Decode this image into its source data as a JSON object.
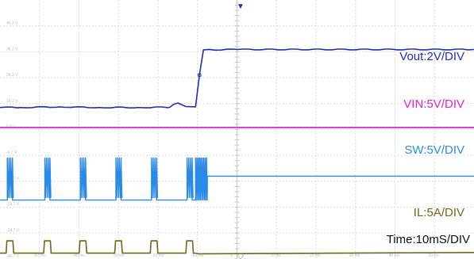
{
  "chart_data": {
    "type": "line",
    "title": "",
    "xlabel": "",
    "ylabel": "",
    "grid": true,
    "time_div": "Time:10mS/DIV",
    "x_ticks": [
      "-50 ms",
      "-40 ms",
      "-30 ms",
      "-20 ms",
      "-10 ms",
      "0",
      "10 ms",
      "20 ms",
      "30 ms",
      "40 ms",
      "50 ms"
    ],
    "xlim": [
      -60,
      60
    ],
    "y_ticks": [
      {
        "label": "46.3 V",
        "v": 8
      },
      {
        "label": "36.3 V",
        "v": 6
      },
      {
        "label": "26.3 V",
        "v": 4
      },
      {
        "label": "16.3 V",
        "v": 2
      },
      {
        "label": "6.3 V",
        "v": 0
      },
      {
        "label": "-6.7 V",
        "v": -2
      },
      {
        "label": "-16.7 V",
        "v": -4
      },
      {
        "label": "-26.7 V",
        "v": -6
      },
      {
        "label": "-36.7 V",
        "v": -8
      },
      {
        "label": "-46.7 V",
        "v": -10
      }
    ],
    "ylim": [
      -10,
      10
    ],
    "series": [
      {
        "name": "Vout:2V/DIV",
        "color": "#1f2fb3",
        "x": [
          -60,
          -55,
          -45,
          -35,
          -25,
          -17,
          -16,
          -15,
          -13,
          -10.5,
          -9.5,
          -8.5,
          0,
          60
        ],
        "y": [
          1.7,
          1.7,
          1.75,
          1.7,
          1.7,
          1.72,
          1.95,
          2.05,
          1.78,
          1.75,
          4.2,
          6.15,
          6.18,
          6.18
        ]
      },
      {
        "name": "VIN:5V/DIV",
        "color": "#e020cf",
        "x": [
          -60,
          60
        ],
        "y": [
          0.15,
          0.15
        ]
      },
      {
        "name": "SW:5V/DIV",
        "color": "#2a8ae8",
        "baseline": -5.45,
        "after": -3.6,
        "pulse_high": -2.2,
        "pulse_width": 1.3,
        "pulse_x": [
          -57.5,
          -48,
          -39,
          -30,
          -21,
          -12
        ],
        "step_x": -10.5,
        "step_end": -7.5
      },
      {
        "name": "IL:5A/DIV",
        "color": "#6a6a18",
        "baseline": -9.55,
        "pulse_high": -8.6,
        "pulse_width": 1.5,
        "pulse_x": [
          -57.5,
          -48,
          -39,
          -30,
          -21,
          -12
        ],
        "after": -9.5
      }
    ]
  }
}
